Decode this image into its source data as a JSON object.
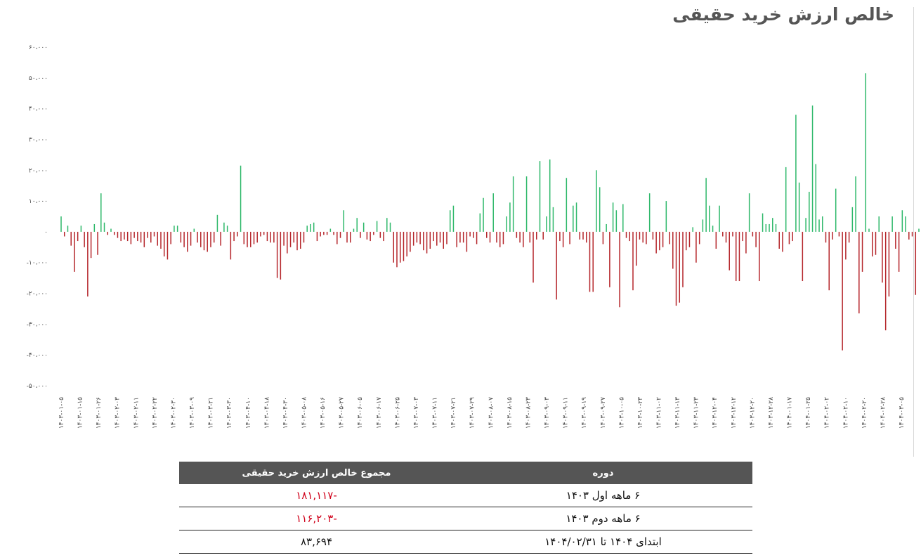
{
  "title": "خالص ارزش خرید حقیقی",
  "colors": {
    "positive": "#2eb86a",
    "negative": "#b5262b",
    "header_bg": "#555555",
    "negative_text": "#d0021b"
  },
  "chart_data": {
    "type": "bar",
    "title": "خالص ارزش خرید حقیقی",
    "ylim": [
      -50000,
      60000
    ],
    "y_ticks": [
      {
        "value": 60000,
        "label": "۶۰،۰۰۰"
      },
      {
        "value": 50000,
        "label": "۵۰،۰۰۰"
      },
      {
        "value": 40000,
        "label": "۴۰،۰۰۰"
      },
      {
        "value": 30000,
        "label": "۳۰،۰۰۰"
      },
      {
        "value": 20000,
        "label": "۲۰،۰۰۰"
      },
      {
        "value": 10000,
        "label": "۱۰،۰۰۰"
      },
      {
        "value": 0,
        "label": "۰"
      },
      {
        "value": -10000,
        "label": "-۱۰،۰۰۰"
      },
      {
        "value": -20000,
        "label": "-۲۰،۰۰۰"
      },
      {
        "value": -30000,
        "label": "-۳۰،۰۰۰"
      },
      {
        "value": -40000,
        "label": "-۴۰،۰۰۰"
      },
      {
        "value": -50000,
        "label": "-۵۰،۰۰۰"
      }
    ],
    "x_tick_labels": [
      "۱۴۰۳-۰۱-۰۵",
      "۱۴۰۳-۰۱-۱۵",
      "۱۴۰۳-۰۱-۲۶",
      "۱۴۰۳-۰۲-۰۳",
      "۱۴۰۳-۰۲-۱۱",
      "۱۴۰۳-۰۲-۲۲",
      "۱۴۰۳-۰۲-۳۰",
      "۱۴۰۳-۰۳-۰۹",
      "۱۴۰۳-۰۳-۲۱",
      "۱۴۰۳-۰۳-۳۰",
      "۱۴۰۳-۰۴-۱۰",
      "۱۴۰۳-۰۴-۱۸",
      "۱۴۰۳-۰۴-۳۰",
      "۱۴۰۳-۰۵-۰۸",
      "۱۴۰۳-۰۵-۱۶",
      "۱۴۰۳-۰۵-۲۷",
      "۱۴۰۳-۰۶-۰۵",
      "۱۴۰۳-۰۶-۱۷",
      "۱۴۰۳-۰۶-۲۵",
      "۱۴۰۳-۰۷-۰۳",
      "۱۴۰۳-۰۷-۱۱",
      "۱۴۰۳-۰۷-۲۱",
      "۱۴۰۳-۰۷-۲۹",
      "۱۴۰۳-۰۸-۰۷",
      "۱۴۰۳-۰۸-۱۵",
      "۱۴۰۳-۰۸-۲۳",
      "۱۴۰۳-۰۹-۰۳",
      "۱۴۰۳-۰۹-۱۱",
      "۱۴۰۳-۰۹-۱۹",
      "۱۴۰۳-۰۹-۲۷",
      "۱۴۰۳-۱۰-۰۵",
      "۱۴۰۳-۱۰-۲۳",
      "۱۴۰۳-۱۱-۰۲",
      "۱۴۰۳-۱۱-۱۳",
      "۱۴۰۳-۱۱-۲۳",
      "۱۴۰۳-۱۲-۰۴",
      "۱۴۰۳-۱۲-۱۲",
      "۱۴۰۳-۱۲-۲۰",
      "۱۴۰۳-۱۲-۲۸",
      "۱۴۰۴-۰۱-۱۷",
      "۱۴۰۴-۰۱-۲۵",
      "۱۴۰۴-۰۲-۰۲",
      "۱۴۰۴-۰۲-۱۰",
      "۱۴۰۴-۰۲-۲۰",
      "۱۴۰۴-۰۲-۲۸",
      "۱۴۰۴-۰۳-۰۵"
    ],
    "values": [
      5000,
      -1500,
      2000,
      -4500,
      -13000,
      -3000,
      2000,
      -5000,
      -21000,
      -8500,
      2500,
      -7500,
      12500,
      3000,
      -1000,
      1000,
      -1000,
      -2000,
      -3000,
      -2500,
      -3000,
      -4000,
      -2000,
      -3000,
      -3500,
      -5000,
      -2000,
      -3500,
      -1500,
      -4500,
      -5500,
      -8000,
      -9000,
      -4000,
      2000,
      2000,
      -3500,
      -5000,
      -6500,
      -4500,
      1000,
      -3500,
      -5000,
      -6000,
      -6500,
      -5000,
      -3500,
      5500,
      -4500,
      3000,
      2000,
      -9000,
      -3000,
      -1500,
      21500,
      -4000,
      -5000,
      -5000,
      -4000,
      -3500,
      -1500,
      -1000,
      -3000,
      -3500,
      -3500,
      -15000,
      -15500,
      -4500,
      -7000,
      -5000,
      -3500,
      -6000,
      -5500,
      -3500,
      2000,
      2500,
      3000,
      -3000,
      -1500,
      -1000,
      -1000,
      1000,
      -1000,
      -4000,
      -2000,
      7000,
      -3500,
      -3500,
      1000,
      4500,
      -2000,
      3000,
      -2500,
      -3000,
      -1000,
      3500,
      -2000,
      -3000,
      4500,
      3000,
      -10000,
      -11500,
      -10000,
      -9500,
      -8000,
      -6500,
      -4500,
      -3500,
      -4000,
      -6000,
      -7000,
      -5500,
      -3000,
      -4500,
      -3500,
      -5500,
      -4000,
      7000,
      8500,
      -5000,
      -3500,
      -3500,
      -6500,
      -1500,
      -2000,
      -4000,
      6000,
      11000,
      -2000,
      -3500,
      12500,
      -3500,
      -5000,
      -4000,
      5000,
      9500,
      18000,
      -2000,
      -3500,
      -5000,
      18000,
      -3500,
      -16500,
      -2500,
      23000,
      -2500,
      5000,
      23500,
      8000,
      -22000,
      -3000,
      -5000,
      17500,
      -4000,
      8500,
      9500,
      -2500,
      -2500,
      -3500,
      -19500,
      -19500,
      20000,
      14500,
      -4000,
      2500,
      -18000,
      9500,
      7000,
      -24500,
      9000,
      -2000,
      -3000,
      -19000,
      -11000,
      -2500,
      -3500,
      -4000,
      12500,
      -2500,
      -7000,
      -6000,
      -5000,
      10000,
      -4000,
      -12000,
      -24000,
      -23000,
      -18000,
      -6000,
      -5000,
      1500,
      -10000,
      -4000,
      4000,
      17500,
      8500,
      2000,
      -5500,
      8500,
      -1500,
      -3500,
      -12500,
      -1500,
      -16000,
      -16000,
      -3000,
      -7000,
      12500,
      -1500,
      -5000,
      -16000,
      6000,
      2500,
      2500,
      4500,
      2500,
      -5500,
      -6500,
      21000,
      -4000,
      -3000,
      38000,
      16000,
      -16000,
      4500,
      13000,
      41000,
      22000,
      4000,
      5000,
      -3500,
      -19000,
      -2500,
      14000,
      -1500,
      -38500,
      -9000,
      -3500,
      8000,
      18000,
      -26500,
      -13000,
      51500,
      1000,
      -8000,
      -7500,
      5000,
      -16500,
      -32000,
      -21000,
      5000,
      -5500,
      -13000,
      7000,
      5000,
      -2500,
      -1500,
      -20500,
      1000
    ]
  },
  "summary": {
    "header_period": "دوره",
    "header_sum": "مجموع خالص ارزش خرید حقیقی",
    "rows": [
      {
        "period": "۶ ماهه اول ۱۴۰۳",
        "sum": "-۱۸۱,۱۱۷"
      },
      {
        "period": "۶ ماهه دوم ۱۴۰۳",
        "sum": "-۱۱۶,۲۰۳"
      },
      {
        "period": "ابتدای ۱۴۰۴ تا ۱۴۰۴/۰۲/۳۱",
        "sum": "۸۳,۶۹۴"
      }
    ]
  }
}
